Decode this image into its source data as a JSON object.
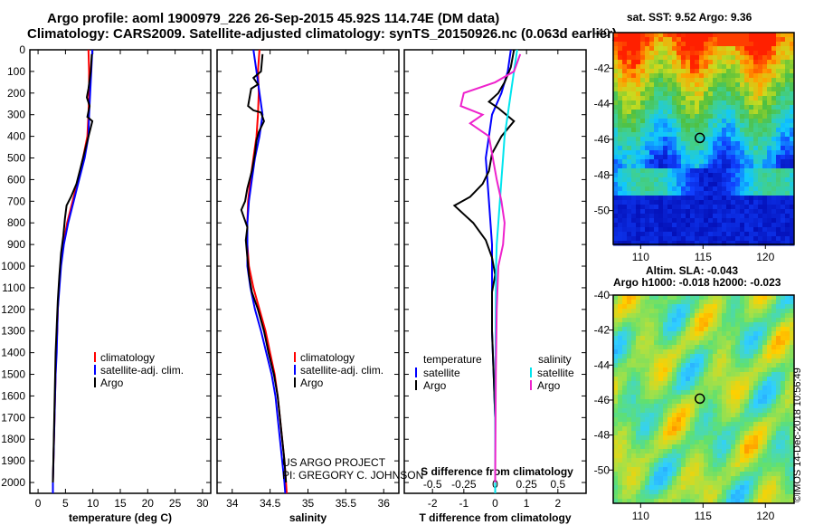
{
  "header": {
    "line1": "Argo profile: aoml 1900979_226 26-Sep-2015 45.92S 114.74E (DM data)",
    "line2": "Climatology: CARS2009. Satellite-adjusted climatology: synTS_20150926.nc (0.063d earlier)"
  },
  "credits": {
    "line1": "US ARGO PROJECT",
    "line2": "PI: GREGORY C. JOHNSON"
  },
  "timestamp": "©IMOS 14-Dec-2018 10:56:49",
  "colors": {
    "climatology": "#ff0000",
    "satellite": "#0000ff",
    "argo": "#000000",
    "sal_satellite": "#00e5ee",
    "sal_argo": "#ee22cc"
  },
  "depth_axis": {
    "min": 0,
    "max": 2050,
    "ticks": [
      "0",
      "100",
      "200",
      "300",
      "400",
      "500",
      "600",
      "700",
      "800",
      "900",
      "1000",
      "1100",
      "1200",
      "1300",
      "1400",
      "1500",
      "1600",
      "1700",
      "1800",
      "1900",
      "2000"
    ]
  },
  "chart_data": [
    {
      "type": "line",
      "xlabel": "temperature (deg C)",
      "xlim": [
        -1.5,
        31.5
      ],
      "xticks": [
        "0",
        "5",
        "10",
        "15",
        "20",
        "25",
        "30"
      ],
      "legend": {
        "placement": "lower-left",
        "labels": [
          "climatology",
          "satellite-adj. clim.",
          "Argo"
        ]
      },
      "series": [
        {
          "name": "climatology",
          "color": "#ff0000",
          "points": [
            [
              9.2,
              0
            ],
            [
              9.3,
              100
            ],
            [
              9.3,
              200
            ],
            [
              9.2,
              300
            ],
            [
              9.0,
              400
            ],
            [
              8.2,
              500
            ],
            [
              7.3,
              600
            ],
            [
              6.3,
              700
            ],
            [
              5.3,
              800
            ],
            [
              4.6,
              900
            ],
            [
              4.1,
              1000
            ],
            [
              3.8,
              1100
            ],
            [
              3.6,
              1200
            ],
            [
              3.5,
              1300
            ],
            [
              3.3,
              1400
            ],
            [
              3.2,
              1500
            ],
            [
              3.1,
              1600
            ],
            [
              3.0,
              1700
            ],
            [
              2.9,
              1800
            ],
            [
              2.8,
              1900
            ],
            [
              2.7,
              2000
            ],
            [
              2.7,
              2050
            ]
          ]
        },
        {
          "name": "satellite-adj. clim.",
          "color": "#0000ff",
          "points": [
            [
              9.9,
              0
            ],
            [
              9.7,
              100
            ],
            [
              9.5,
              200
            ],
            [
              9.3,
              300
            ],
            [
              9.2,
              400
            ],
            [
              8.5,
              500
            ],
            [
              7.5,
              600
            ],
            [
              6.5,
              700
            ],
            [
              5.5,
              800
            ],
            [
              4.7,
              900
            ],
            [
              4.2,
              1000
            ],
            [
              3.9,
              1100
            ],
            [
              3.6,
              1200
            ],
            [
              3.5,
              1300
            ],
            [
              3.4,
              1400
            ],
            [
              3.2,
              1500
            ],
            [
              3.1,
              1600
            ],
            [
              3.0,
              1700
            ],
            [
              2.9,
              1800
            ],
            [
              2.8,
              1900
            ],
            [
              2.7,
              2000
            ],
            [
              2.7,
              2050
            ]
          ]
        },
        {
          "name": "Argo",
          "color": "#000000",
          "points": [
            [
              9.8,
              20
            ],
            [
              9.6,
              100
            ],
            [
              9.2,
              180
            ],
            [
              8.9,
              220
            ],
            [
              9.4,
              260
            ],
            [
              9.0,
              310
            ],
            [
              9.9,
              330
            ],
            [
              9.4,
              380
            ],
            [
              8.6,
              460
            ],
            [
              7.8,
              540
            ],
            [
              7.0,
              620
            ],
            [
              6.0,
              680
            ],
            [
              5.2,
              720
            ],
            [
              4.9,
              780
            ],
            [
              4.6,
              860
            ],
            [
              4.2,
              940
            ],
            [
              3.9,
              1040
            ],
            [
              3.6,
              1160
            ],
            [
              3.4,
              1280
            ],
            [
              3.2,
              1400
            ],
            [
              3.1,
              1520
            ],
            [
              3.0,
              1640
            ],
            [
              2.9,
              1760
            ],
            [
              2.8,
              1880
            ],
            [
              2.7,
              2000
            ]
          ]
        }
      ]
    },
    {
      "type": "line",
      "xlabel": "salinity",
      "xlim": [
        33.8,
        36.2
      ],
      "xticks": [
        "34",
        "34.5",
        "35",
        "35.5",
        "36"
      ],
      "legend": {
        "placement": "lower-left",
        "labels": [
          "climatology",
          "satellite-adj. clim.",
          "Argo"
        ]
      },
      "series": [
        {
          "name": "climatology",
          "color": "#ff0000",
          "points": [
            [
              34.36,
              0
            ],
            [
              34.34,
              100
            ],
            [
              34.35,
              200
            ],
            [
              34.34,
              300
            ],
            [
              34.32,
              400
            ],
            [
              34.28,
              500
            ],
            [
              34.24,
              600
            ],
            [
              34.21,
              700
            ],
            [
              34.2,
              800
            ],
            [
              34.2,
              900
            ],
            [
              34.22,
              1000
            ],
            [
              34.28,
              1100
            ],
            [
              34.36,
              1200
            ],
            [
              34.44,
              1300
            ],
            [
              34.5,
              1400
            ],
            [
              34.56,
              1500
            ],
            [
              34.6,
              1600
            ],
            [
              34.63,
              1700
            ],
            [
              34.66,
              1800
            ],
            [
              34.69,
              1900
            ],
            [
              34.71,
              2000
            ],
            [
              34.72,
              2050
            ]
          ]
        },
        {
          "name": "satellite-adj. clim.",
          "color": "#0000ff",
          "points": [
            [
              34.28,
              0
            ],
            [
              34.32,
              100
            ],
            [
              34.36,
              200
            ],
            [
              34.4,
              300
            ],
            [
              34.36,
              400
            ],
            [
              34.3,
              500
            ],
            [
              34.26,
              600
            ],
            [
              34.22,
              700
            ],
            [
              34.2,
              800
            ],
            [
              34.2,
              900
            ],
            [
              34.2,
              1000
            ],
            [
              34.24,
              1100
            ],
            [
              34.3,
              1200
            ],
            [
              34.38,
              1300
            ],
            [
              34.45,
              1400
            ],
            [
              34.52,
              1500
            ],
            [
              34.57,
              1600
            ],
            [
              34.6,
              1700
            ],
            [
              34.63,
              1800
            ],
            [
              34.66,
              1900
            ],
            [
              34.69,
              2000
            ],
            [
              34.7,
              2050
            ]
          ]
        },
        {
          "name": "Argo",
          "color": "#000000",
          "points": [
            [
              34.4,
              20
            ],
            [
              34.38,
              100
            ],
            [
              34.28,
              130
            ],
            [
              34.34,
              160
            ],
            [
              34.25,
              180
            ],
            [
              34.21,
              260
            ],
            [
              34.28,
              280
            ],
            [
              34.38,
              290
            ],
            [
              34.42,
              330
            ],
            [
              34.35,
              380
            ],
            [
              34.32,
              420
            ],
            [
              34.3,
              480
            ],
            [
              34.26,
              560
            ],
            [
              34.2,
              640
            ],
            [
              34.17,
              700
            ],
            [
              34.12,
              740
            ],
            [
              34.16,
              780
            ],
            [
              34.2,
              820
            ],
            [
              34.18,
              880
            ],
            [
              34.2,
              960
            ],
            [
              34.22,
              1040
            ],
            [
              34.26,
              1120
            ],
            [
              34.34,
              1200
            ],
            [
              34.42,
              1300
            ],
            [
              34.48,
              1400
            ],
            [
              34.55,
              1500
            ],
            [
              34.6,
              1600
            ],
            [
              34.63,
              1700
            ],
            [
              34.66,
              1800
            ],
            [
              34.69,
              1900
            ],
            [
              34.71,
              2000
            ]
          ]
        }
      ]
    },
    {
      "type": "line",
      "xlabel": "T difference from climatology",
      "xlabel2": "S difference from climatology",
      "xlim": [
        -2.9,
        2.9
      ],
      "xticks": [
        "-2",
        "-1",
        "0",
        "1",
        "2"
      ],
      "x2ticks": [
        "-0.5",
        "-0.25",
        "0",
        "0.25",
        "0.5"
      ],
      "legend": {
        "placement": "lower",
        "temperature_labels": [
          "temperature",
          "satellite",
          "Argo"
        ],
        "salinity_labels": [
          "salinity",
          "satellite",
          "Argo"
        ]
      },
      "series": [
        {
          "name": "satellite",
          "color": "#0000ff",
          "points": [
            [
              0.5,
              0
            ],
            [
              0.4,
              100
            ],
            [
              0.2,
              200
            ],
            [
              -0.1,
              300
            ],
            [
              -0.2,
              400
            ],
            [
              -0.3,
              500
            ],
            [
              -0.2,
              700
            ],
            [
              -0.1,
              900
            ],
            [
              -0.1,
              1100
            ],
            [
              -0.1,
              1300
            ],
            [
              -0.05,
              1500
            ],
            [
              0.0,
              1700
            ],
            [
              0.0,
              1900
            ],
            [
              0.0,
              2050
            ]
          ]
        },
        {
          "name": "Argo",
          "color": "#000000",
          "points": [
            [
              0.6,
              0
            ],
            [
              0.5,
              80
            ],
            [
              0.3,
              150
            ],
            [
              0.1,
              200
            ],
            [
              -0.2,
              240
            ],
            [
              0.1,
              270
            ],
            [
              0.6,
              330
            ],
            [
              0.2,
              400
            ],
            [
              -0.1,
              480
            ],
            [
              -0.2,
              560
            ],
            [
              -0.4,
              620
            ],
            [
              -0.8,
              680
            ],
            [
              -1.3,
              720
            ],
            [
              -1.0,
              760
            ],
            [
              -0.7,
              800
            ],
            [
              -0.3,
              880
            ],
            [
              -0.1,
              960
            ],
            [
              0.0,
              1040
            ],
            [
              -0.1,
              1120
            ],
            [
              -0.1,
              1300
            ],
            [
              -0.05,
              1500
            ],
            [
              0.0,
              1700
            ],
            [
              0.0,
              1900
            ],
            [
              0.0,
              2050
            ]
          ]
        },
        {
          "name": "salinity satellite",
          "color": "#00e5ee",
          "points": [
            [
              0.7,
              0
            ],
            [
              0.6,
              100
            ],
            [
              0.5,
              200
            ],
            [
              0.4,
              300
            ],
            [
              0.3,
              400
            ],
            [
              0.25,
              500
            ],
            [
              0.2,
              600
            ],
            [
              0.15,
              700
            ],
            [
              0.1,
              800
            ],
            [
              0.05,
              900
            ],
            [
              0.03,
              1000
            ],
            [
              0.02,
              1200
            ],
            [
              0.01,
              1500
            ],
            [
              0.0,
              1800
            ],
            [
              0.0,
              2050
            ]
          ]
        },
        {
          "name": "salinity Argo",
          "color": "#ee22cc",
          "points": [
            [
              0.8,
              20
            ],
            [
              0.6,
              100
            ],
            [
              0.0,
              150
            ],
            [
              -1.0,
              200
            ],
            [
              -1.1,
              260
            ],
            [
              -0.4,
              300
            ],
            [
              -0.8,
              340
            ],
            [
              -0.2,
              400
            ],
            [
              -0.1,
              480
            ],
            [
              0.05,
              600
            ],
            [
              0.2,
              700
            ],
            [
              0.3,
              800
            ],
            [
              0.25,
              900
            ],
            [
              0.1,
              1000
            ],
            [
              0.05,
              1200
            ],
            [
              0.02,
              1500
            ],
            [
              0.0,
              2000
            ]
          ]
        }
      ]
    },
    {
      "type": "heatmap",
      "title": "sat. SST: 9.52 Argo: 9.36",
      "xlim": [
        107.8,
        122.3
      ],
      "ylim": [
        -51.9,
        -40
      ],
      "xticks": [
        "110",
        "115",
        "120"
      ],
      "yticks": [
        "-40",
        "-42",
        "-44",
        "-46",
        "-48",
        "-50"
      ],
      "marker": {
        "lon": 114.74,
        "lat": -45.92
      }
    },
    {
      "type": "heatmap",
      "title": "Altim. SLA: -0.043",
      "subtitle": "Argo h1000: -0.018 h2000: -0.023",
      "xlim": [
        107.8,
        122.3
      ],
      "ylim": [
        -51.9,
        -40
      ],
      "xticks": [
        "110",
        "115",
        "120"
      ],
      "yticks": [
        "-40",
        "-42",
        "-44",
        "-46",
        "-48",
        "-50"
      ],
      "marker": {
        "lon": 114.74,
        "lat": -45.92
      }
    }
  ]
}
